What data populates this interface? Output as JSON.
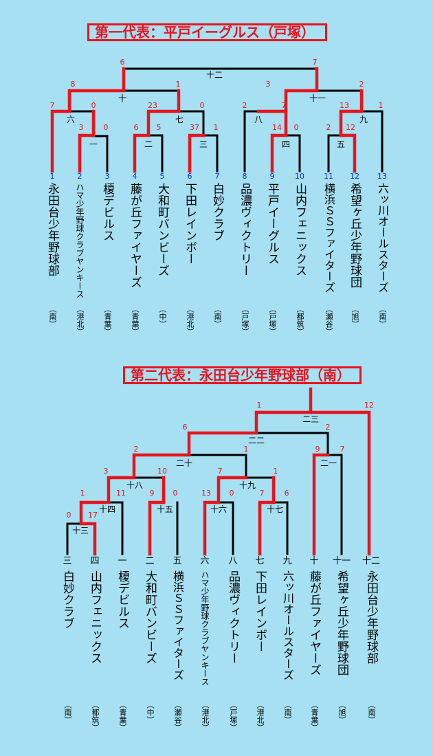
{
  "top": {
    "title": "第一代表：平戸イーグルス（戸塚）",
    "teams": [
      {
        "num": "1",
        "name": "永田台少年野球部",
        "area": "（南）"
      },
      {
        "num": "2",
        "name": "ハマ少年野球クラブヤンキース",
        "area": "（港北）"
      },
      {
        "num": "3",
        "name": "榎デビルス",
        "area": "（青葉）"
      },
      {
        "num": "4",
        "name": "藤が丘ファイヤーズ",
        "area": "（青葉）"
      },
      {
        "num": "5",
        "name": "大和町バンビーズ",
        "area": "（中）"
      },
      {
        "num": "6",
        "name": "下田レインボー",
        "area": "（港北）"
      },
      {
        "num": "7",
        "name": "白妙クラブ",
        "area": "（南）"
      },
      {
        "num": "8",
        "name": "品濃ヴィクトリー",
        "area": "（戸塚）"
      },
      {
        "num": "9",
        "name": "平戸イーグルス",
        "area": "（戸塚）"
      },
      {
        "num": "10",
        "name": "山内フェニックス",
        "area": "（都筑）"
      },
      {
        "num": "11",
        "name": "横浜ＳＳファイターズ",
        "area": "（瀬谷）"
      },
      {
        "num": "12",
        "name": "希望ヶ丘少年野球団",
        "area": "（旭）"
      },
      {
        "num": "13",
        "name": "六ッ川オールスターズ",
        "area": "（南）"
      }
    ],
    "rounds": [
      "十二",
      "十",
      "十一",
      "六",
      "七",
      "八",
      "九",
      "一",
      "二",
      "三",
      "四",
      "五"
    ],
    "scores": [
      "6",
      "7",
      "8",
      "1",
      "3",
      "2",
      "7",
      "0",
      "23",
      "0",
      "2",
      "7",
      "13",
      "1",
      "3",
      "0",
      "6",
      "5",
      "37",
      "1",
      "14",
      "0",
      "2",
      "12"
    ]
  },
  "bottom": {
    "title": "第二代表：永田台少年野球部（南）",
    "teams": [
      {
        "label": "三",
        "name": "白妙クラブ",
        "area": "（南）"
      },
      {
        "label": "四",
        "name": "山内フェニックス",
        "area": "（都筑）"
      },
      {
        "label": "一",
        "name": "榎デビルス",
        "area": "（青葉）"
      },
      {
        "label": "二",
        "name": "大和町バンビーズ",
        "area": "（中）"
      },
      {
        "label": "五",
        "name": "横浜ＳＳファイターズ",
        "area": "（瀬谷）"
      },
      {
        "label": "六",
        "name": "ハマ少年野球クラブヤンキース",
        "area": "（港北）"
      },
      {
        "label": "八",
        "name": "品濃ヴィクトリー",
        "area": "（戸塚）"
      },
      {
        "label": "七",
        "name": "下田レインボー",
        "area": "（港北）"
      },
      {
        "label": "九",
        "name": "六ッ川オールスターズ",
        "area": "（南）"
      },
      {
        "label": "十",
        "name": "藤が丘ファイヤーズ",
        "area": "（青葉）"
      },
      {
        "label": "十一",
        "name": "希望ヶ丘少年野球団",
        "area": "（旭）"
      },
      {
        "label": "十二",
        "name": "永田台少年野球部",
        "area": "（南）"
      }
    ],
    "rounds": [
      "二三",
      "二二",
      "二十",
      "二一",
      "十八",
      "十九",
      "十四",
      "十五",
      "十六",
      "十七",
      "十三"
    ],
    "scores": [
      "1",
      "12",
      "6",
      "2",
      "2",
      "1",
      "9",
      "7",
      "3",
      "10",
      "7",
      "1",
      "1",
      "11",
      "9",
      "0",
      "13",
      "0",
      "7",
      "6",
      "0",
      "17"
    ]
  }
}
